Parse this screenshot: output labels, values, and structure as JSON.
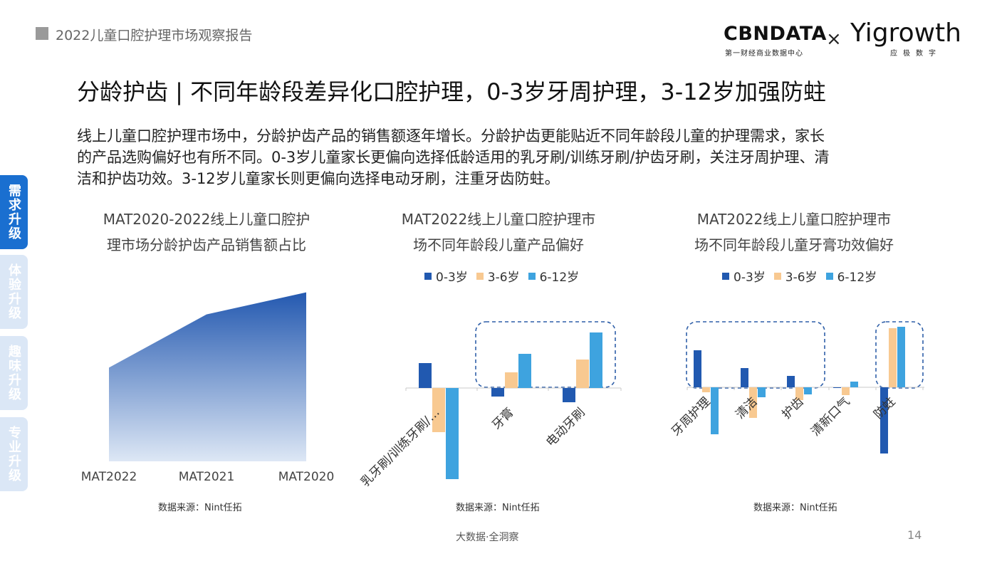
{
  "header": {
    "report_title": "2022儿童口腔护理市场观察报告",
    "logo_cbn": "CBNDATA",
    "logo_cbn_sub": "第一财经商业数据中心",
    "logo_x": "×",
    "logo_yi": "Yigrowth",
    "logo_yi_sub": "应极数字"
  },
  "title": "分龄护齿 | 不同年龄段差异化口腔护理，0-3岁牙周护理，3-12岁加强防蛀",
  "paragraph": {
    "line1": "线上儿童口腔护理市场中，分龄护齿产品的销售额逐年增长。分龄护齿更能贴近不同年龄段儿童的护理需求，家长",
    "line2": "的产品选购偏好也有所不同。0-3岁儿童家长更偏向选择低龄适用的乳牙刷/训练牙刷/护齿牙刷，关注牙周护理、清",
    "line3": "洁和护齿功效。3-12岁儿童家长则更偏向选择电动牙刷，注重牙齿防蛀。"
  },
  "side_tabs": [
    {
      "label": "需求升级",
      "active": true
    },
    {
      "label": "体验升级",
      "active": false
    },
    {
      "label": "趣味升级",
      "active": false
    },
    {
      "label": "专业升级",
      "active": false
    }
  ],
  "colors": {
    "dark_blue": "#2159b0",
    "light_orange": "#f8c991",
    "light_blue": "#3ea3df",
    "area_top": "#2459b0",
    "area_bottom": "#dde7f5",
    "accent": "#1a6fd0"
  },
  "source_label": "数据来源：Nint任拓",
  "footer": {
    "center": "大数据·全洞察",
    "page": "14"
  },
  "chart_data": [
    {
      "type": "area",
      "title_line1": "MAT2020-2022线上儿童口腔护",
      "title_line2": "理市场分龄护齿产品销售额占比",
      "categories": [
        "MAT2022",
        "MAT2021",
        "MAT2020"
      ],
      "values": [
        51,
        80,
        92
      ],
      "ylim": [
        0,
        100
      ],
      "grid": false
    },
    {
      "type": "bar",
      "title_line1": "MAT2022线上儿童口腔护理市",
      "title_line2": "场不同年龄段儿童产品偏好",
      "categories": [
        "乳牙刷/训练牙刷/…",
        "牙膏",
        "电动牙刷"
      ],
      "series": [
        {
          "name": "0-3岁",
          "values": [
            0.35,
            -0.12,
            -0.2
          ]
        },
        {
          "name": "3-6岁",
          "values": [
            -0.62,
            0.22,
            0.4
          ]
        },
        {
          "name": "6-12岁",
          "values": [
            -1.28,
            0.48,
            0.78
          ]
        }
      ],
      "ylim": [
        -1.3,
        0.85
      ],
      "legend": "top",
      "highlight": [
        "牙膏",
        "电动牙刷"
      ]
    },
    {
      "type": "bar",
      "title_line1": "MAT2022线上儿童口腔护理市",
      "title_line2": "场不同年龄段儿童牙膏功效偏好",
      "categories": [
        "牙周护理",
        "清洁",
        "护齿",
        "清新口气",
        "防蛀"
      ],
      "series": [
        {
          "name": "0-3岁",
          "values": [
            0.52,
            0.27,
            0.16,
            -0.01,
            -0.93
          ]
        },
        {
          "name": "3-6岁",
          "values": [
            -0.07,
            -0.43,
            -0.18,
            -0.11,
            0.83
          ]
        },
        {
          "name": "6-12岁",
          "values": [
            -0.66,
            -0.14,
            -0.1,
            0.08,
            0.85
          ]
        }
      ],
      "ylim": [
        -1.0,
        0.9
      ],
      "legend": "top",
      "highlight": [
        "牙周护理",
        "清洁",
        "护齿",
        "防蛀"
      ]
    }
  ]
}
